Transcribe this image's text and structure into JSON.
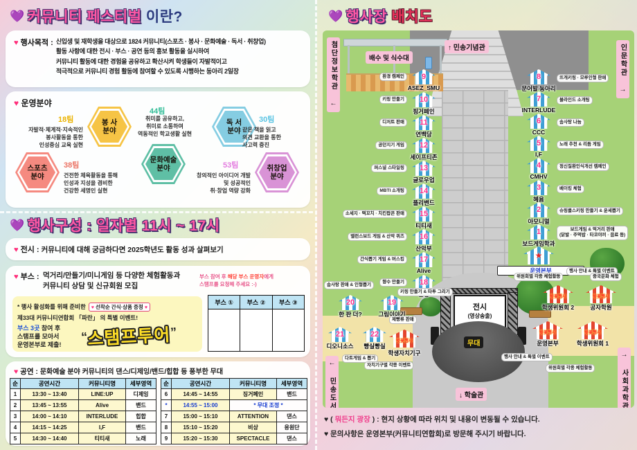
{
  "left": {
    "title": {
      "heart": "💜",
      "main": "커뮤니티 페스티벌",
      "suffix": " 이란?"
    },
    "purpose": {
      "heart": "♥",
      "label": "행사목적",
      "colon": " : ",
      "lines": [
        "신입생 및 재학생을 대상으로 1824 커뮤니티(스포츠 · 봉사 · 문화예술 · 독서 · 취창업)",
        "활동 사항에 대한 전시 · 부스 · 공연 등의 홍보 활동을 실시하여",
        "커뮤니티 활동에 대한 경험을 공유하고 확산시켜 학생들이 자발적이고",
        "적극적으로 커뮤니티 경험 활동에 참여할 수 있도록 시행하는 동아리 2일장"
      ]
    },
    "fields": {
      "heart": "♥",
      "label": "운영분야",
      "items": [
        {
          "name": "봉 사\n분야",
          "team": "18팀",
          "desc": "자발적·체계적·지속적인\n봉사활동을 통한\n인성중심 교육 실현",
          "color": "#f6c445"
        },
        {
          "name": "문화예술\n분야",
          "team": "44팀",
          "desc": "취미를 공유하고,\n취미로 소통하며\n역동적인 학교생활 실현",
          "color": "#5fbfa5"
        },
        {
          "name": "독 서\n분야",
          "team": "30팀",
          "desc": "같은 책을 읽고\n의견 교환을 통한\n사고력 증진",
          "color": "#85cde2"
        },
        {
          "name": "스포츠\n분야",
          "team": "38팀",
          "desc": "건전한 체육활동을 통해\n인성과 지성을 겸비한\n건강한 세명인 실현",
          "color": "#f58a80"
        },
        {
          "name": "취창업\n분야",
          "team": "53팀",
          "desc": "창의적인 아이디어 개발\n및 성공적인\n취·창업 역량 강화",
          "color": "#d993d6"
        }
      ]
    },
    "schedule": {
      "heart": "💜",
      "main": "행사구성",
      "suffix": " : 일자별 11시 ~ 17시"
    },
    "exhibition": {
      "heart": "♥",
      "label": "전시",
      "colon": " : ",
      "text": "커뮤니티에 대해 궁금하다면 2025학년도 활동 성과 살펴보기"
    },
    "booth": {
      "heart": "♥",
      "label": "부스",
      "colon": " : ",
      "line1": "먹거리/만들기/미니게임 등 다양한 체험활동과",
      "line2": "커뮤니티 상담 및 신규회원 모집",
      "note": {
        "a": "부스 참여 후 ",
        "b": "해당 부스 운영자",
        "c": "에게",
        "d": "스탬프를 요청해 주세요 :-)"
      },
      "event": {
        "intro": "* 행사 활성화를 위해 준비한",
        "badge_h1": "♥",
        "badge": " 선착순 간식·상품 증정 ",
        "badge_h2": "♥",
        "line2": "제33대 커뮤니티연합회 「파란」 의 특별 이벤트!",
        "cta_blue": "부스 3곳",
        "cta1": " 참여 후",
        "cta2": "스탬프를 모아서",
        "cta3": "운영본부로 제출!",
        "q_open": "“",
        "stamp": "스탬프투어",
        "q_close": "”"
      },
      "stamp_headers": [
        "부스 ①",
        "부스 ②",
        "부스 ③"
      ]
    },
    "performance": {
      "heart": "♥",
      "label": "공연",
      "colon": " : ",
      "desc": "문화예술 분야 커뮤니티의 댄스/디제잉/밴드/힙합 등 풍부한 무대",
      "headers": [
        "순",
        "공연시간",
        "커뮤니티명",
        "세부영역"
      ],
      "table1": [
        [
          "1",
          "13:30 ~ 13:40",
          "LINE:UP",
          "디제잉"
        ],
        [
          "2",
          "13:45 ~ 13:55",
          "Alive",
          "밴드"
        ],
        [
          "3",
          "14:00 ~ 14:10",
          "INTERLUDE",
          "힙합"
        ],
        [
          "4",
          "14:15 ~ 14:25",
          "I,F",
          "밴드"
        ],
        [
          "5",
          "14:30 ~ 14:40",
          "티티새",
          "노래"
        ]
      ],
      "table2": [
        [
          "6",
          "14:45 ~ 14:55",
          "징거페인",
          "밴드"
        ],
        [
          "*",
          "14:55 ~ 15:00",
          "* 무대 조정 *",
          ""
        ],
        [
          "7",
          "15:00 ~ 15:10",
          "ATTENTION",
          "댄스"
        ],
        [
          "8",
          "15:10 ~ 15:20",
          "비상",
          "응원단"
        ],
        [
          "9",
          "15:20 ~ 15:30",
          "SPECTACLE",
          "댄스"
        ]
      ]
    }
  },
  "right": {
    "title": {
      "heart": "💜",
      "main": "행사장",
      "suffix": " 배치도"
    },
    "map": {
      "top_building": "↑ 민송기념관",
      "water_station": "배수 및 식수대",
      "building_left": "첨단정보학관 ←",
      "building_right": "인문학관 →",
      "building_bottom_left": "← 민송도서관",
      "building_bottom_right": "→ 사회과학관",
      "building_bottom": "↓ 학술관",
      "stage": {
        "screen": "전시",
        "screen_sub": "(영상송출)",
        "label": "무대"
      },
      "left_booths": [
        {
          "num": "9",
          "name": "ASEZ_SMU",
          "label": "환경 캠페인"
        },
        {
          "num": "10",
          "name": "핑거페인",
          "label": "키링 만들기"
        },
        {
          "num": "11",
          "name": "연백당",
          "label": "디저트 판매"
        },
        {
          "num": "12",
          "name": "세이프티존",
          "label": "공던지기 게임"
        },
        {
          "num": "13",
          "name": "글로우업",
          "label": "퍼스널 스타일링"
        },
        {
          "num": "14",
          "name": "플리밴드",
          "label": "MBTI 소개팅"
        },
        {
          "num": "15",
          "name": "티티새",
          "label": "소세지 · 떡꼬치 · 치킨팝콘 판매"
        },
        {
          "num": "16",
          "name": "산악부",
          "label": "밸런스보드 게임 & 산악 퀴즈"
        },
        {
          "num": "17",
          "name": "Alive",
          "label": "간식뽑기 게임 & 버스킹"
        },
        {
          "num": "18",
          "name": "순정",
          "label": "향수 만들기"
        }
      ],
      "right_booths": [
        {
          "num": "8",
          "name": "문어발 동아리",
          "label": "뜨개키링 · 모루인형 판매"
        },
        {
          "num": "7",
          "name": "INTERLUDE",
          "label": "블라인드 소개팅"
        },
        {
          "num": "6",
          "name": "CCC",
          "label": "솜사탕 나눔"
        },
        {
          "num": "5",
          "name": "I,F",
          "label": "노래 추천 & 리듬 게임"
        },
        {
          "num": "4",
          "name": "CMHV",
          "label": "정신질환인식개선 캠페인"
        },
        {
          "num": "3",
          "name": "혜윰",
          "label": "베이킹 체험"
        },
        {
          "num": "2",
          "name": "아모니멀",
          "label": "슈링클스키링 만들기 & 운세뽑기"
        },
        {
          "num": "1",
          "name": "보드게임학과",
          "label": "보드게임 & 먹거리 판매\n(닭발 · 주먹밥 · 타코야끼 · 음료 등)"
        }
      ],
      "hq_booth": {
        "num": "★",
        "name": "운영본부",
        "label": "행사 안내 & 특별 이벤트"
      },
      "plaza_booths": [
        {
          "num": "20",
          "name": "한 판 더?",
          "label": "솜사탕 판매 & 인형뽑기"
        },
        {
          "num": "19",
          "name": "그림이야기",
          "label": "키링 만들기 & 타투 그리기"
        },
        {
          "num": "21",
          "name": "디오니소스",
          "label": "다트게임 & 뽑기"
        },
        {
          "num": "22",
          "name": "빵실빵실",
          "label": "제빵류 판매"
        }
      ],
      "council_tent": {
        "flag": "벚꽃행사",
        "name": "학생자치기구",
        "label": "자치기구별 각종 이벤트"
      },
      "red_tents": [
        {
          "flag": "벚꽃행사",
          "name": "학생위원회 2",
          "label": "위원회별 각종 체험활동"
        },
        {
          "flag": "벚꽃행사",
          "name": "공자학원",
          "label": "중국문화 체험"
        },
        {
          "flag": "벚꽃행사",
          "name": "운영본부",
          "label": "행사 안내 & 특별 이벤트"
        },
        {
          "flag": "벚꽃행사",
          "name": "학생위원회 1",
          "label": "위원회별 각종 체험활동"
        }
      ]
    },
    "notes": {
      "n1a": "♥ ( ",
      "n1b": "뭐든지 광장",
      "n1c": " ) : 현지 상황에 따라 위치 및 내용이 변동될 수 있습니다.",
      "n2": "♥ 문의사항은 운영본부(커뮤니티연합회)로 방문해 주시기 바랍니다."
    }
  }
}
